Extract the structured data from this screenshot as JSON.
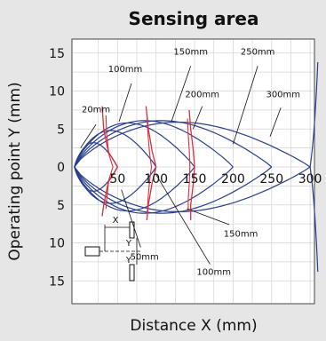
{
  "chart_data": {
    "type": "line",
    "title": "Sensing area",
    "xlabel": "Distance X (mm)",
    "ylabel": "Operating point Y (mm)",
    "xlim": [
      0,
      310
    ],
    "ylim": [
      -16,
      16
    ],
    "grid": true,
    "x_ticks": [
      50,
      100,
      150,
      200,
      250,
      300
    ],
    "x_tick_labels": [
      "50",
      "100",
      "150",
      "200",
      "250",
      "300"
    ],
    "y_ticks": [
      15,
      10,
      5,
      0,
      -5,
      -10,
      -15
    ],
    "y_tick_labels": [
      "15",
      "10",
      "5",
      "0",
      "5",
      "10",
      "15"
    ],
    "colors": {
      "blue": "#2b3f8e",
      "red": "#d9313f",
      "plot_bg": "#ffffff",
      "page_bg": "#e6e6e6"
    },
    "blue_series": [
      {
        "label": "20mm",
        "x_max": 50,
        "half_width": 3.2
      },
      {
        "label": "100mm",
        "x_max": 100,
        "half_width": 4.8
      },
      {
        "label": "150mm",
        "x_max": 150,
        "half_width": 5.8
      },
      {
        "label": "200mm",
        "x_max": 200,
        "half_width": 6.1
      },
      {
        "label": "250mm",
        "x_max": 250,
        "half_width": 6.1
      },
      {
        "label": "300mm",
        "x_max": 300,
        "half_width": 5.9
      }
    ],
    "blue_outer": {
      "from": [
        300,
        0
      ],
      "to_top": [
        310,
        13.8
      ],
      "to_bottom": [
        310,
        -13.8
      ]
    },
    "red_series": [
      {
        "label": "50mm",
        "center_x": 50,
        "points": [
          [
            30,
            8
          ],
          [
            32,
            5
          ],
          [
            38,
            2
          ],
          [
            50,
            0
          ],
          [
            38,
            -2
          ],
          [
            32,
            -5
          ],
          [
            30,
            -6.5
          ]
        ]
      },
      {
        "label": "100mm",
        "center_x": 100,
        "points": [
          [
            87,
            8
          ],
          [
            90,
            5
          ],
          [
            95,
            2
          ],
          [
            100,
            0
          ],
          [
            95,
            -2
          ],
          [
            90,
            -5
          ],
          [
            88,
            -7
          ]
        ]
      },
      {
        "label": "150mm",
        "center_x": 150,
        "points": [
          [
            143,
            7.5
          ],
          [
            145,
            5
          ],
          [
            148,
            2.5
          ],
          [
            150,
            0
          ],
          [
            148,
            -2.5
          ],
          [
            145,
            -5
          ],
          [
            145,
            -7
          ]
        ]
      }
    ],
    "annotations": [
      {
        "text": "20mm",
        "x": 22,
        "y": 7.2
      },
      {
        "text": "100mm",
        "x": 60,
        "y": 12.5
      },
      {
        "text": "150mm",
        "x": 145,
        "y": 14.8
      },
      {
        "text": "250mm",
        "x": 232,
        "y": 14.8
      },
      {
        "text": "200mm",
        "x": 160,
        "y": 9.2
      },
      {
        "text": "300mm",
        "x": 265,
        "y": 9.2
      },
      {
        "text": "150mm",
        "x": 210,
        "y": -9.2
      },
      {
        "text": "50mm",
        "x": 85,
        "y": -12.2
      },
      {
        "text": "100mm",
        "x": 175,
        "y": -14.2
      }
    ],
    "inset_labels": {
      "x": "X",
      "y1": "Y",
      "y2": "Y"
    }
  }
}
